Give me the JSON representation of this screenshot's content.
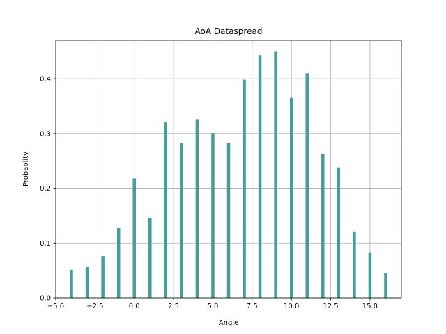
{
  "chart_data": {
    "type": "bar",
    "title": "AoA Dataspread",
    "xlabel": "Angle",
    "ylabel": "Probablity",
    "xlim": [
      -5.0,
      17.0
    ],
    "ylim": [
      0.0,
      0.47
    ],
    "xticks": [
      "−5.0",
      "−2.5",
      "0.0",
      "2.5",
      "5.0",
      "7.5",
      "10.0",
      "12.5",
      "15.0"
    ],
    "xtick_values": [
      -5.0,
      -2.5,
      0.0,
      2.5,
      5.0,
      7.5,
      10.0,
      12.5,
      15.0
    ],
    "yticks": [
      "0.0",
      "0.1",
      "0.2",
      "0.3",
      "0.4"
    ],
    "ytick_values": [
      0.0,
      0.1,
      0.2,
      0.3,
      0.4
    ],
    "grid": true,
    "bar_color": "#469e9a",
    "bar_width": 0.2,
    "x": [
      -4,
      -3,
      -2,
      -1,
      0,
      1,
      2,
      3,
      4,
      5,
      6,
      7,
      8,
      9,
      10,
      11,
      12,
      13,
      14,
      15,
      16
    ],
    "values": [
      0.051,
      0.057,
      0.076,
      0.127,
      0.218,
      0.146,
      0.32,
      0.282,
      0.326,
      0.301,
      0.282,
      0.398,
      0.443,
      0.449,
      0.365,
      0.41,
      0.263,
      0.238,
      0.121,
      0.083,
      0.045
    ]
  }
}
